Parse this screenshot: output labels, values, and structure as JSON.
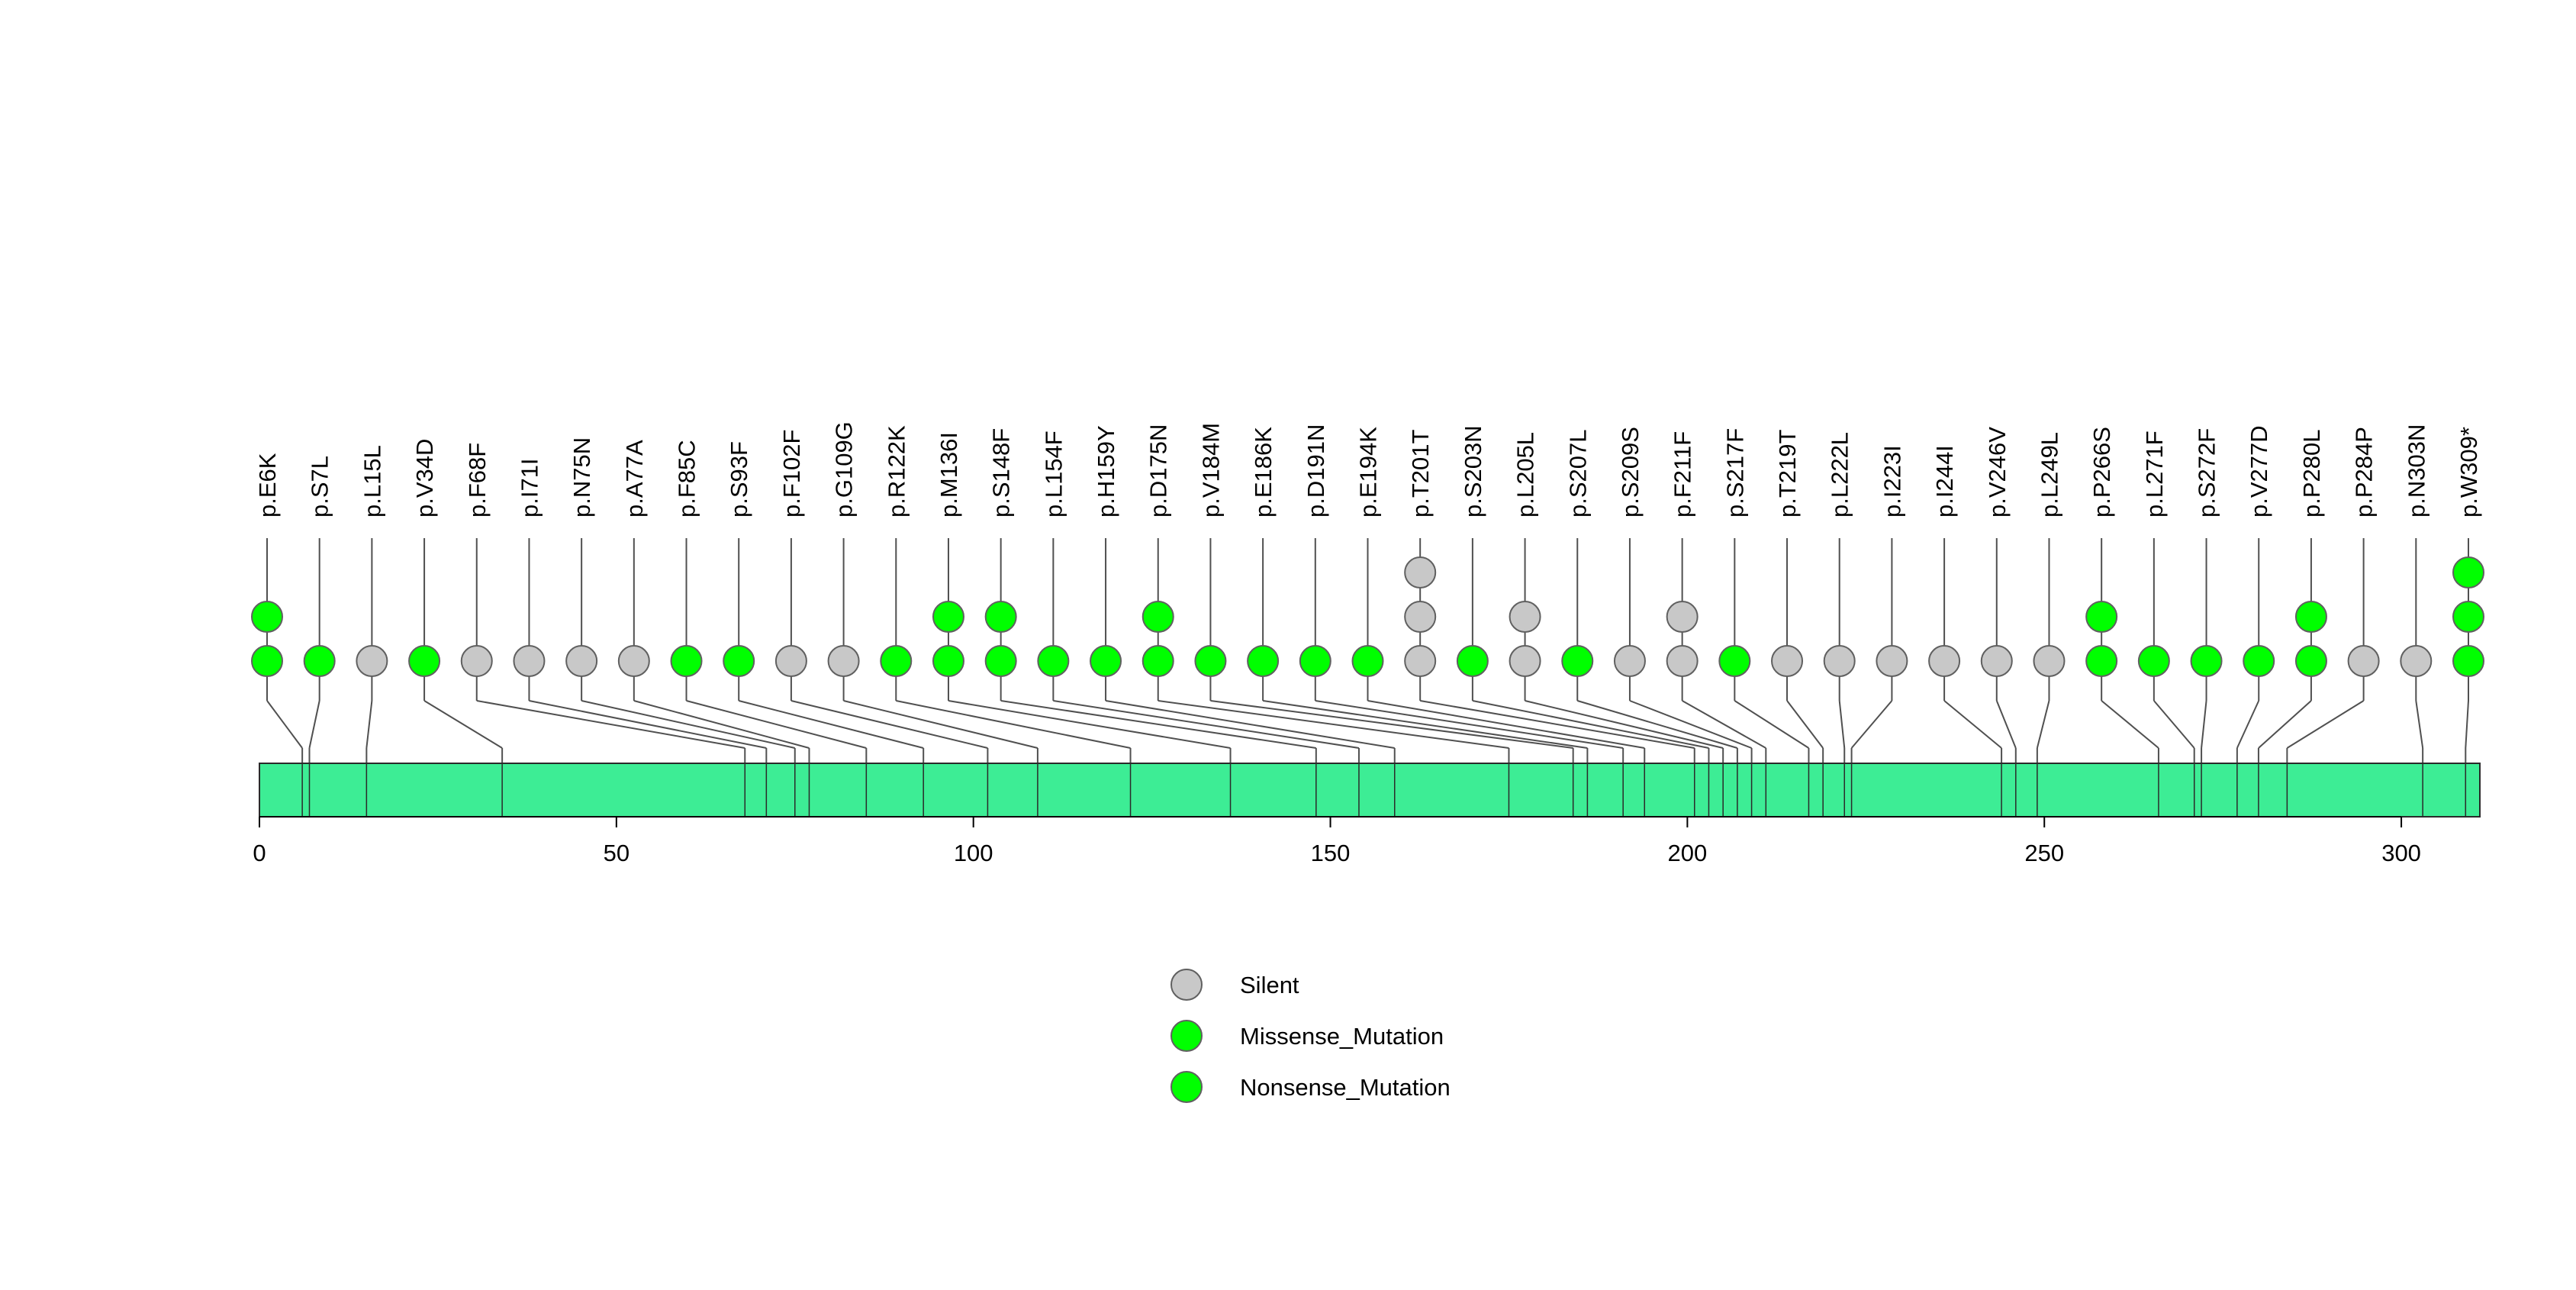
{
  "colors": {
    "Silent": "#c8c8c8",
    "Missense_Mutation": "#00ff00",
    "Nonsense_Mutation": "#00ff00",
    "protein_bar": "#3ded95"
  },
  "chart_data": {
    "type": "lollipop",
    "title": "",
    "xlabel": "",
    "ylabel": "",
    "xlim": [
      0,
      311
    ],
    "x_ticks": [
      0,
      50,
      100,
      150,
      200,
      250,
      300
    ],
    "protein_length": 311,
    "mutations": [
      {
        "label": "p.E6K",
        "position": 6,
        "types": [
          "Missense_Mutation",
          "Missense_Mutation"
        ]
      },
      {
        "label": "p.S7L",
        "position": 7,
        "types": [
          "Missense_Mutation"
        ]
      },
      {
        "label": "p.L15L",
        "position": 15,
        "types": [
          "Silent"
        ]
      },
      {
        "label": "p.V34D",
        "position": 34,
        "types": [
          "Missense_Mutation"
        ]
      },
      {
        "label": "p.F68F",
        "position": 68,
        "types": [
          "Silent"
        ]
      },
      {
        "label": "p.I71I",
        "position": 71,
        "types": [
          "Silent"
        ]
      },
      {
        "label": "p.N75N",
        "position": 75,
        "types": [
          "Silent"
        ]
      },
      {
        "label": "p.A77A",
        "position": 77,
        "types": [
          "Silent"
        ]
      },
      {
        "label": "p.F85C",
        "position": 85,
        "types": [
          "Missense_Mutation"
        ]
      },
      {
        "label": "p.S93F",
        "position": 93,
        "types": [
          "Missense_Mutation"
        ]
      },
      {
        "label": "p.F102F",
        "position": 102,
        "types": [
          "Silent"
        ]
      },
      {
        "label": "p.G109G",
        "position": 109,
        "types": [
          "Silent"
        ]
      },
      {
        "label": "p.R122K",
        "position": 122,
        "types": [
          "Missense_Mutation"
        ]
      },
      {
        "label": "p.M136I",
        "position": 136,
        "types": [
          "Missense_Mutation",
          "Missense_Mutation"
        ]
      },
      {
        "label": "p.S148F",
        "position": 148,
        "types": [
          "Missense_Mutation",
          "Missense_Mutation"
        ]
      },
      {
        "label": "p.L154F",
        "position": 154,
        "types": [
          "Missense_Mutation"
        ]
      },
      {
        "label": "p.H159Y",
        "position": 159,
        "types": [
          "Missense_Mutation"
        ]
      },
      {
        "label": "p.D175N",
        "position": 175,
        "types": [
          "Missense_Mutation",
          "Missense_Mutation"
        ]
      },
      {
        "label": "p.V184M",
        "position": 184,
        "types": [
          "Missense_Mutation"
        ]
      },
      {
        "label": "p.E186K",
        "position": 186,
        "types": [
          "Missense_Mutation"
        ]
      },
      {
        "label": "p.D191N",
        "position": 191,
        "types": [
          "Missense_Mutation"
        ]
      },
      {
        "label": "p.E194K",
        "position": 194,
        "types": [
          "Missense_Mutation"
        ]
      },
      {
        "label": "p.T201T",
        "position": 201,
        "types": [
          "Silent",
          "Silent",
          "Silent"
        ]
      },
      {
        "label": "p.S203N",
        "position": 203,
        "types": [
          "Missense_Mutation"
        ]
      },
      {
        "label": "p.L205L",
        "position": 205,
        "types": [
          "Silent",
          "Silent"
        ]
      },
      {
        "label": "p.S207L",
        "position": 207,
        "types": [
          "Missense_Mutation"
        ]
      },
      {
        "label": "p.S209S",
        "position": 209,
        "types": [
          "Silent"
        ]
      },
      {
        "label": "p.F211F",
        "position": 211,
        "types": [
          "Silent",
          "Silent"
        ]
      },
      {
        "label": "p.S217F",
        "position": 217,
        "types": [
          "Missense_Mutation"
        ]
      },
      {
        "label": "p.T219T",
        "position": 219,
        "types": [
          "Silent"
        ]
      },
      {
        "label": "p.L222L",
        "position": 222,
        "types": [
          "Silent"
        ]
      },
      {
        "label": "p.I223I",
        "position": 223,
        "types": [
          "Silent"
        ]
      },
      {
        "label": "p.I244I",
        "position": 244,
        "types": [
          "Silent"
        ]
      },
      {
        "label": "p.V246V",
        "position": 246,
        "types": [
          "Silent"
        ]
      },
      {
        "label": "p.L249L",
        "position": 249,
        "types": [
          "Silent"
        ]
      },
      {
        "label": "p.P266S",
        "position": 266,
        "types": [
          "Missense_Mutation",
          "Missense_Mutation"
        ]
      },
      {
        "label": "p.L271F",
        "position": 271,
        "types": [
          "Missense_Mutation"
        ]
      },
      {
        "label": "p.S272F",
        "position": 272,
        "types": [
          "Missense_Mutation"
        ]
      },
      {
        "label": "p.V277D",
        "position": 277,
        "types": [
          "Missense_Mutation"
        ]
      },
      {
        "label": "p.P280L",
        "position": 280,
        "types": [
          "Missense_Mutation",
          "Missense_Mutation"
        ]
      },
      {
        "label": "p.P284P",
        "position": 284,
        "types": [
          "Silent"
        ]
      },
      {
        "label": "p.N303N",
        "position": 303,
        "types": [
          "Silent"
        ]
      },
      {
        "label": "p.W309*",
        "position": 309,
        "types": [
          "Nonsense_Mutation",
          "Nonsense_Mutation",
          "Nonsense_Mutation"
        ]
      }
    ],
    "legend": {
      "placement": "bottom-center",
      "entries": [
        {
          "label": "Silent",
          "type": "Silent"
        },
        {
          "label": "Missense_Mutation",
          "type": "Missense_Mutation"
        },
        {
          "label": "Nonsense_Mutation",
          "type": "Nonsense_Mutation"
        }
      ]
    }
  }
}
